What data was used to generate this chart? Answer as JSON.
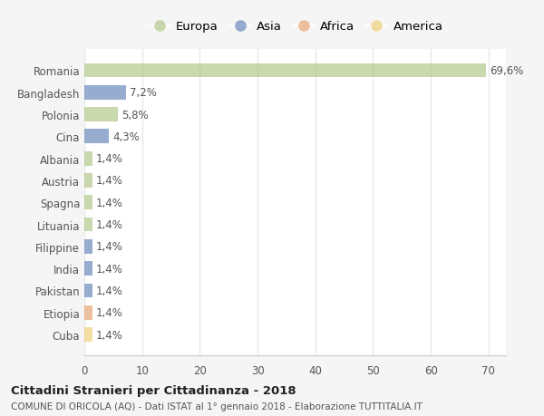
{
  "categories": [
    "Romania",
    "Bangladesh",
    "Polonia",
    "Cina",
    "Albania",
    "Austria",
    "Spagna",
    "Lituania",
    "Filippine",
    "India",
    "Pakistan",
    "Etiopia",
    "Cuba"
  ],
  "values": [
    69.6,
    7.2,
    5.8,
    4.3,
    1.4,
    1.4,
    1.4,
    1.4,
    1.4,
    1.4,
    1.4,
    1.4,
    1.4
  ],
  "labels": [
    "69,6%",
    "7,2%",
    "5,8%",
    "4,3%",
    "1,4%",
    "1,4%",
    "1,4%",
    "1,4%",
    "1,4%",
    "1,4%",
    "1,4%",
    "1,4%",
    "1,4%"
  ],
  "colors": [
    "#b5c98e",
    "#6e8ebf",
    "#b5c98e",
    "#6e8ebf",
    "#b5c98e",
    "#b5c98e",
    "#b5c98e",
    "#b5c98e",
    "#6e8ebf",
    "#6e8ebf",
    "#6e8ebf",
    "#e8a87c",
    "#f0d080"
  ],
  "continent": [
    "Europa",
    "Asia",
    "Europa",
    "Asia",
    "Europa",
    "Europa",
    "Europa",
    "Europa",
    "Asia",
    "Asia",
    "Asia",
    "Africa",
    "America"
  ],
  "legend_labels": [
    "Europa",
    "Asia",
    "Africa",
    "America"
  ],
  "legend_colors": [
    "#b5c98e",
    "#6e8ebf",
    "#e8a87c",
    "#f0d080"
  ],
  "xlim": [
    0,
    73
  ],
  "xticks": [
    0,
    10,
    20,
    30,
    40,
    50,
    60,
    70
  ],
  "title": "Cittadini Stranieri per Cittadinanza - 2018",
  "subtitle": "COMUNE DI ORICOLA (AQ) - Dati ISTAT al 1° gennaio 2018 - Elaborazione TUTTITALIA.IT",
  "plot_bg_color": "#ffffff",
  "fig_bg_color": "#f5f5f5",
  "bar_alpha": 0.72,
  "grid_color": "#e8e8e8",
  "label_fontsize": 8.5,
  "tick_fontsize": 8.5,
  "bar_height": 0.65
}
